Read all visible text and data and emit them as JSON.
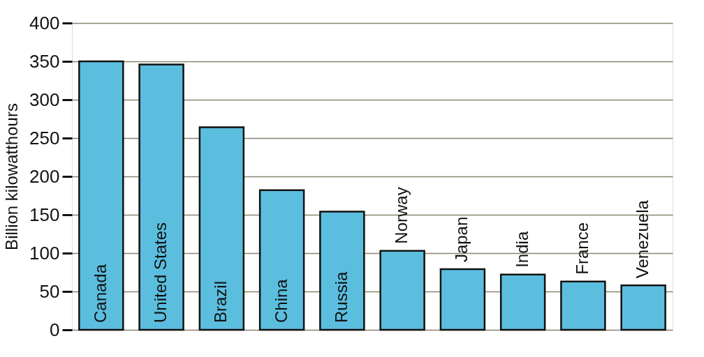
{
  "chart_data": {
    "type": "bar",
    "ylabel": "Billion kilowatthours",
    "categories": [
      "Canada",
      "United States",
      "Brazil",
      "China",
      "Russia",
      "Norway",
      "Japan",
      "India",
      "France",
      "Venezuela"
    ],
    "values": [
      350,
      346,
      264,
      182,
      154,
      103,
      79,
      72,
      63,
      58
    ],
    "color": "#5bbedf",
    "ylim": [
      0,
      400
    ],
    "yticks": [
      0,
      50,
      100,
      150,
      200,
      250,
      300,
      350,
      400
    ],
    "grid": "y",
    "tick_labels": "y"
  }
}
